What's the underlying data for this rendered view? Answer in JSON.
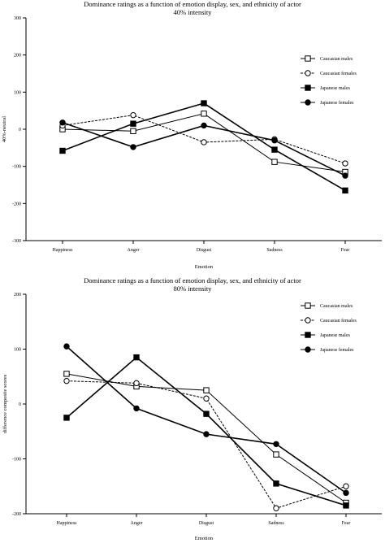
{
  "chart_data": [
    {
      "type": "line",
      "title": "Dominance ratings as a function of emotion display, sex, and ethnicity of actor",
      "subtitle": "40% intensity",
      "xlabel": "Emotion",
      "ylabel": "40%-neutral",
      "categories": [
        "Happiness",
        "Anger",
        "Disgust",
        "Sadness",
        "Fear"
      ],
      "ylim": [
        -300,
        300
      ],
      "yticks": [
        -300,
        -200,
        -100,
        0,
        100,
        200,
        300
      ],
      "legend": "right",
      "grid": false,
      "series": [
        {
          "name": "Caucasian males",
          "marker": "open-square",
          "values": [
            0,
            -5,
            42,
            -88,
            -115
          ]
        },
        {
          "name": "Caucasian females",
          "marker": "open-circle",
          "values": [
            10,
            38,
            -35,
            -27,
            -92
          ]
        },
        {
          "name": "Japanese males",
          "marker": "filled-square",
          "values": [
            -58,
            15,
            70,
            -55,
            -165
          ]
        },
        {
          "name": "Japanese females",
          "marker": "filled-circle",
          "values": [
            18,
            -48,
            10,
            -30,
            -125
          ]
        }
      ]
    },
    {
      "type": "line",
      "title": "Dominance ratings as a function of emotion display, sex, and ethnicity of actor",
      "subtitle": "80% intensity",
      "xlabel": "Emotion",
      "ylabel": "difference composite scores",
      "categories": [
        "Happiness",
        "Anger",
        "Disgust",
        "Sadness",
        "Fear"
      ],
      "ylim": [
        -200,
        200
      ],
      "yticks": [
        -200,
        -100,
        0,
        100,
        200
      ],
      "legend": "right",
      "grid": false,
      "series": [
        {
          "name": "Caucasian males",
          "marker": "open-square",
          "values": [
            55,
            32,
            25,
            -92,
            -180
          ]
        },
        {
          "name": "Caucasian females",
          "marker": "open-circle",
          "values": [
            42,
            38,
            10,
            -190,
            -150
          ]
        },
        {
          "name": "Japanese males",
          "marker": "filled-square",
          "values": [
            -25,
            85,
            -18,
            -145,
            -185
          ]
        },
        {
          "name": "Japanese females",
          "marker": "filled-circle",
          "values": [
            105,
            -8,
            -55,
            -73,
            -162
          ]
        }
      ]
    }
  ]
}
